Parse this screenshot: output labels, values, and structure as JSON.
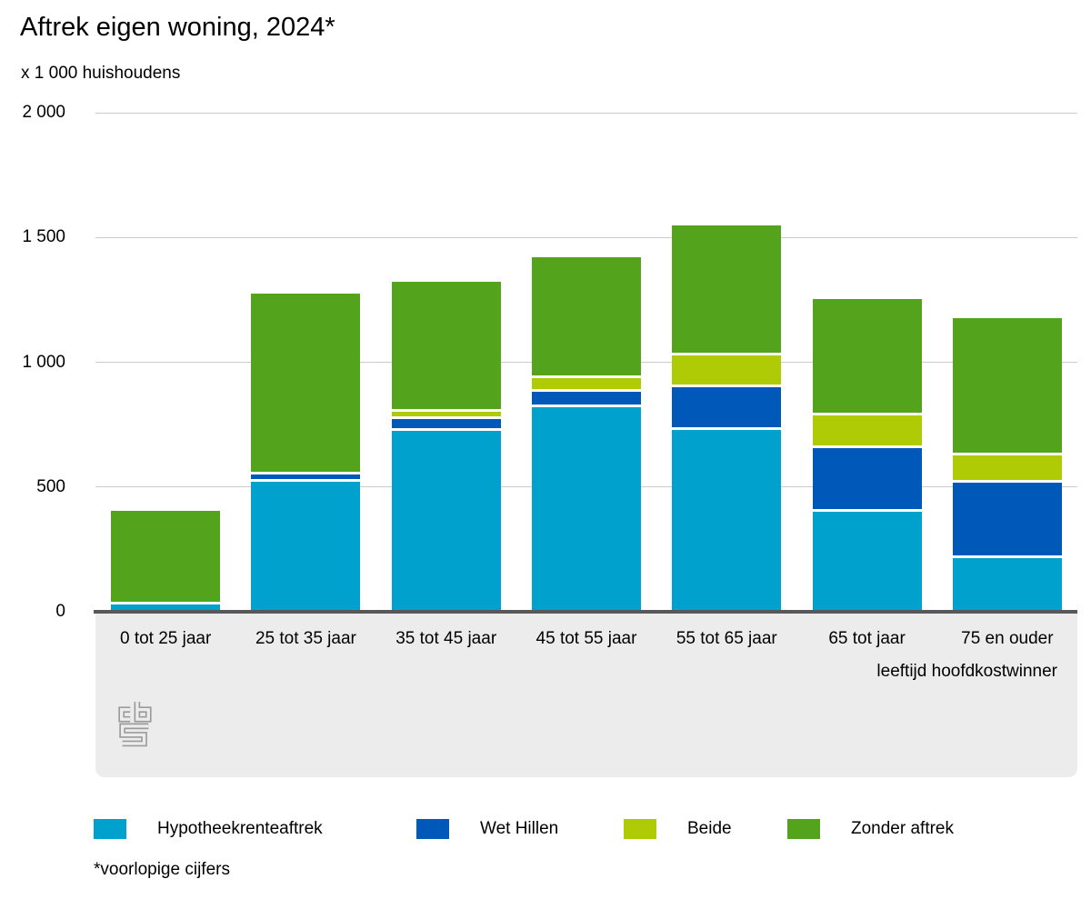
{
  "title": "Aftrek eigen woning, 2024*",
  "subtitle": "x 1 000 huishoudens",
  "footnote": "*voorlopige cijfers",
  "x_axis_title": "leeftijd hoofdkostwinner",
  "colors": {
    "hypotheekrenteaftrek": "#00a1cd",
    "wet_hillen": "#0058b8",
    "beide": "#afcb05",
    "zonder_aftrek": "#53a31d",
    "gridline": "#cbcbcb",
    "baseline": "#58585a",
    "panel_background": "#ececec",
    "logo_gray": "#9b9b9b"
  },
  "chart_data": {
    "type": "bar",
    "stacked": true,
    "title": "Aftrek eigen woning, 2024*",
    "unit_label": "x 1 000 huishoudens",
    "xlabel": "leeftijd hoofdkostwinner",
    "ylabel": "",
    "ylim": [
      0,
      2000
    ],
    "grid": true,
    "legend_position": "bottom",
    "categories": [
      "0 tot 25 jaar",
      "25 tot 35 jaar",
      "35 tot 45 jaar",
      "45 tot 55 jaar",
      "55 tot 65 jaar",
      "65 tot jaar",
      "75 en ouder"
    ],
    "series": [
      {
        "name": "Hypotheekrenteaftrek",
        "color": "#00a1cd",
        "values": [
          30,
          520,
          725,
          820,
          730,
          400,
          215
        ]
      },
      {
        "name": "Wet Hillen",
        "color": "#0058b8",
        "values": [
          0,
          20,
          35,
          50,
          160,
          245,
          290
        ]
      },
      {
        "name": "Beide",
        "color": "#afcb05",
        "values": [
          0,
          0,
          20,
          45,
          115,
          120,
          100
        ]
      },
      {
        "name": "Zonder aftrek",
        "color": "#53a31d",
        "values": [
          365,
          715,
          510,
          475,
          510,
          455,
          540
        ]
      }
    ],
    "stack_totals": [
      395,
      1255,
      1290,
      1390,
      1515,
      1220,
      1145
    ],
    "yticks": [
      {
        "value": 0,
        "label": "0"
      },
      {
        "value": 500,
        "label": "500"
      },
      {
        "value": 1000,
        "label": "1 000"
      },
      {
        "value": 1500,
        "label": "1 500"
      },
      {
        "value": 2000,
        "label": "2 000"
      }
    ]
  },
  "legend": {
    "items": [
      "Hypotheekrenteaftrek",
      "Wet Hillen",
      "Beide",
      "Zonder aftrek"
    ]
  },
  "logo_name": "cbs-logo"
}
